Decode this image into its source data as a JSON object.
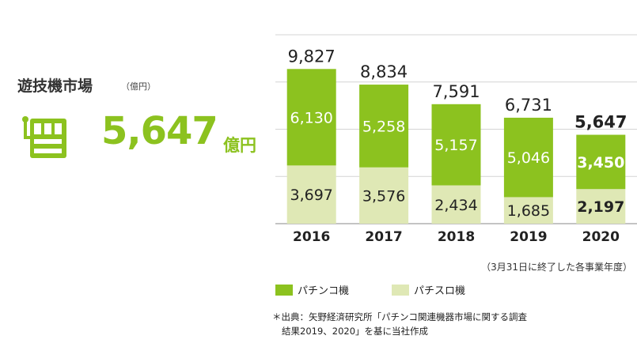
{
  "header": {
    "title": "遊技機市場",
    "unit": "（億円）"
  },
  "highlight": {
    "value": "5,647",
    "unit": "億円",
    "icon": "slot-machine-icon"
  },
  "colors": {
    "pachinko": "#8cc21f",
    "pachislot": "#dfe8b5",
    "accent": "#8cc21f"
  },
  "chart_data": {
    "type": "bar",
    "stacked": true,
    "categories": [
      "2016",
      "2017",
      "2018",
      "2019",
      "2020"
    ],
    "series": [
      {
        "name": "パチスロ機",
        "values": [
          3697,
          3576,
          2434,
          1685,
          2197
        ],
        "labels": [
          "3,697",
          "3,576",
          "2,434",
          "1,685",
          "2,197"
        ]
      },
      {
        "name": "パチンコ機",
        "values": [
          6130,
          5258,
          5157,
          5046,
          3450
        ],
        "labels": [
          "6,130",
          "5,258",
          "5,157",
          "5,046",
          "3,450"
        ]
      }
    ],
    "totals": [
      9827,
      8834,
      7591,
      6731,
      5647
    ],
    "total_labels": [
      "9,827",
      "8,834",
      "7,591",
      "6,731",
      "5,647"
    ],
    "highlight_category": "2020",
    "ylim": [
      0,
      12000
    ],
    "grid": true
  },
  "notes": {
    "fiscal_year": "（3月31日に終了した各事業年度）",
    "source_line1": "＊出典：矢野経済研究所「パチンコ関連機器市場に関する調査",
    "source_line2": "結果2019、2020」を基に当社作成"
  },
  "legend": {
    "pachinko": "パチンコ機",
    "pachislot": "パチスロ機"
  }
}
